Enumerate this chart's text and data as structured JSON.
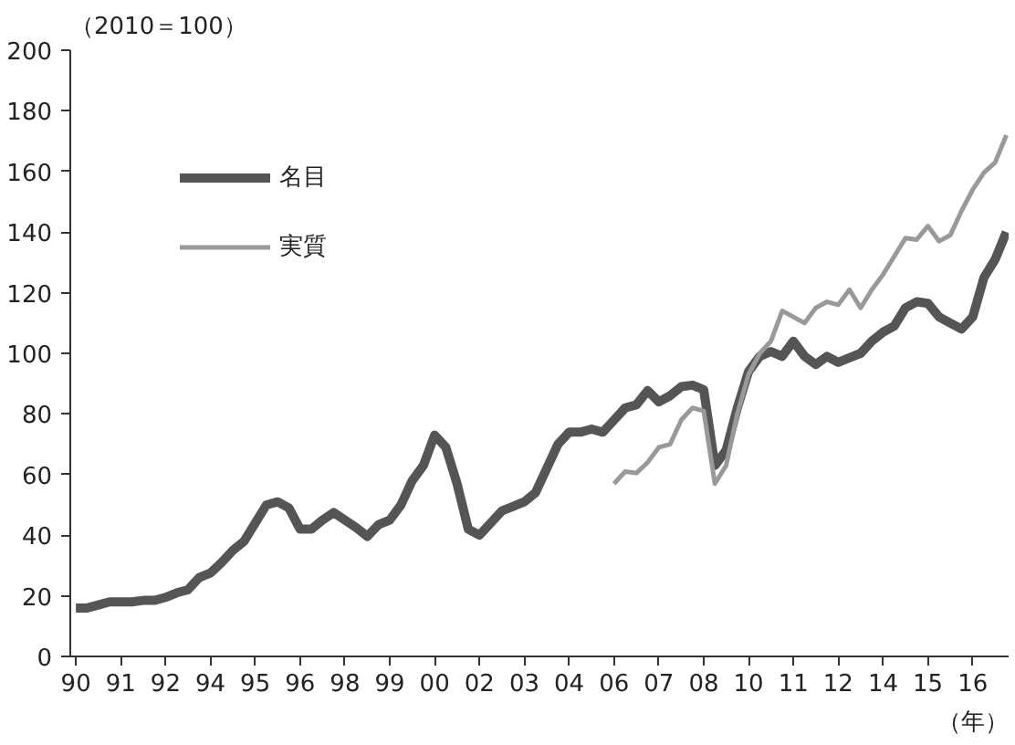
{
  "chart_data": {
    "type": "line",
    "ylabel": "（2010＝100）",
    "xlabel": "（年）",
    "ylim": [
      0,
      200
    ],
    "yticks": [
      0,
      20,
      40,
      60,
      80,
      100,
      120,
      140,
      160,
      180,
      200
    ],
    "categories": [
      "90",
      null,
      null,
      null,
      "91",
      null,
      null,
      null,
      "92",
      null,
      null,
      null,
      "94",
      null,
      null,
      null,
      "95",
      null,
      null,
      null,
      "96",
      null,
      null,
      null,
      "98",
      null,
      null,
      null,
      "99",
      null,
      null,
      null,
      "00",
      null,
      null,
      null,
      "02",
      null,
      null,
      null,
      "03",
      null,
      null,
      null,
      "04",
      null,
      null,
      null,
      "06",
      null,
      null,
      null,
      "07",
      null,
      null,
      null,
      "08",
      null,
      null,
      null,
      "10",
      null,
      null,
      null,
      "11",
      null,
      null,
      null,
      "12",
      null,
      null,
      null,
      "14",
      null,
      null,
      null,
      "15",
      null,
      null,
      null,
      "16",
      null,
      null,
      null
    ],
    "grid": false,
    "legend": "top left",
    "line_style": "solid",
    "series": [
      {
        "name": "名目",
        "color": "#555555",
        "values": [
          16,
          16,
          17,
          18,
          18,
          18,
          18.5,
          18.5,
          19.5,
          21,
          22,
          26,
          27.5,
          31,
          35,
          38,
          44,
          50,
          51,
          49,
          42,
          42,
          45,
          47.5,
          45,
          42.5,
          39.6,
          43.5,
          45,
          50,
          58,
          63,
          73,
          69,
          57,
          42,
          40,
          44,
          48,
          49.5,
          51,
          54,
          62,
          70,
          74,
          74,
          75,
          74,
          78,
          82,
          83,
          87.7,
          84,
          86,
          89,
          89.5,
          88,
          63,
          68,
          82,
          94,
          99,
          100.6,
          99,
          104,
          99,
          96.3,
          99,
          97,
          98.5,
          100,
          104,
          107,
          109,
          115,
          117,
          116.5,
          112,
          110,
          108,
          112,
          125,
          131,
          140
        ]
      },
      {
        "name": "実質",
        "color": "#999999",
        "values": [
          null,
          null,
          null,
          null,
          null,
          null,
          null,
          null,
          null,
          null,
          null,
          null,
          null,
          null,
          null,
          null,
          null,
          null,
          null,
          null,
          null,
          null,
          null,
          null,
          null,
          null,
          null,
          null,
          null,
          null,
          null,
          null,
          null,
          null,
          null,
          null,
          null,
          null,
          null,
          null,
          null,
          null,
          null,
          null,
          null,
          null,
          null,
          null,
          57,
          61,
          60.5,
          64,
          69,
          70,
          78,
          82,
          81,
          57,
          63,
          80,
          93,
          100,
          104,
          114,
          112,
          110,
          115,
          117,
          116,
          121,
          115,
          121,
          126,
          132,
          138,
          137.5,
          142,
          137,
          139,
          147,
          154,
          159.6,
          163,
          172
        ]
      }
    ]
  }
}
